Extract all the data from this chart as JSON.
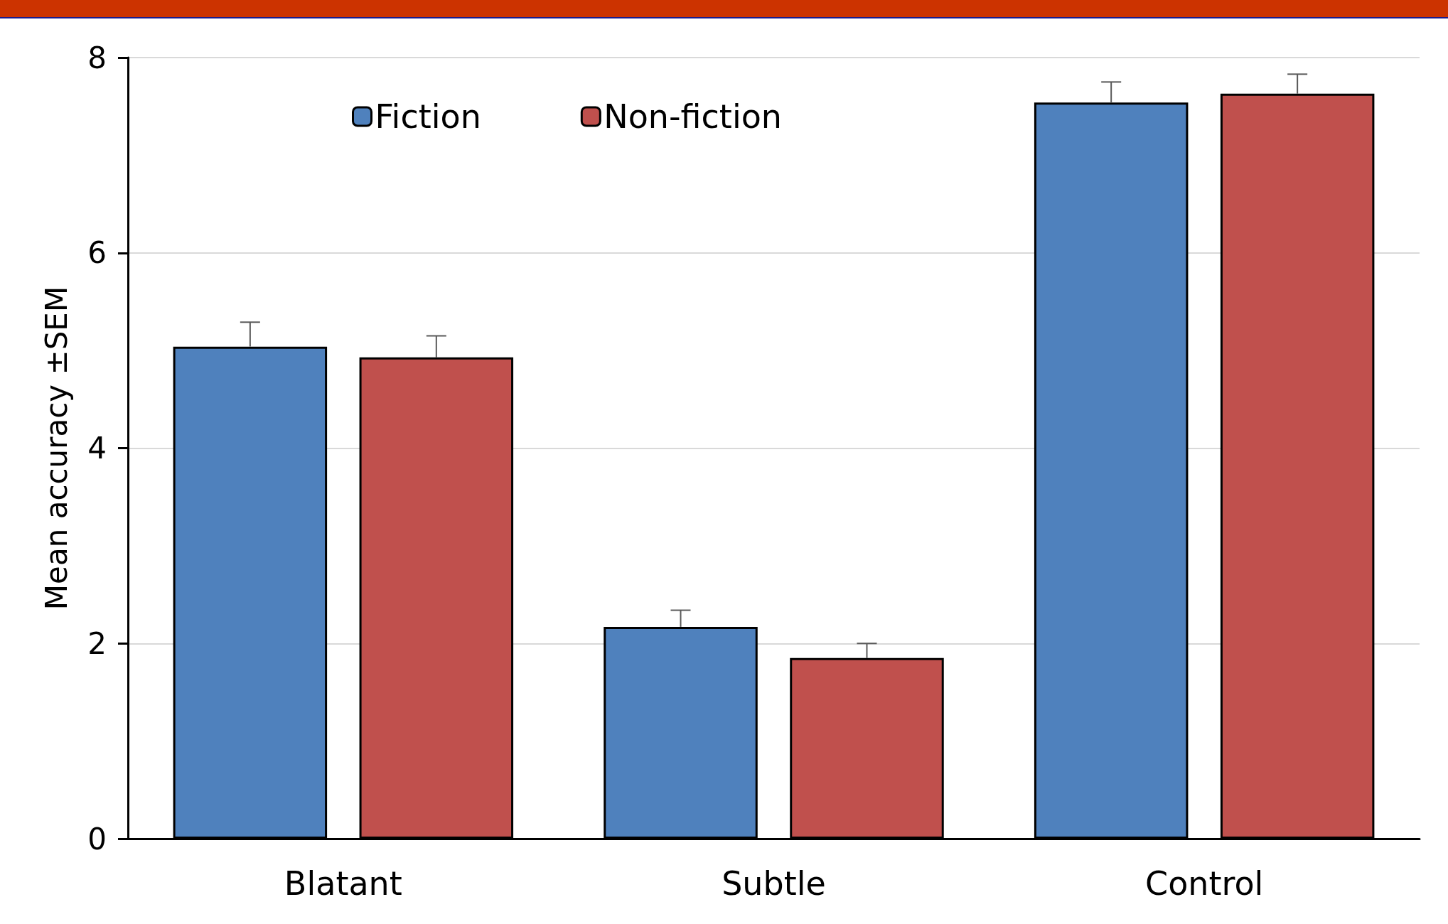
{
  "chart_data": {
    "type": "bar",
    "ylabel": "Mean accuracy ±SEM",
    "categories": [
      "Blatant",
      "Subtle",
      "Control"
    ],
    "series": [
      {
        "name": "Fiction",
        "color": "#4f81bd",
        "values": [
          5.04,
          2.17,
          7.54
        ],
        "errors": [
          [
            5.04,
            5.29
          ],
          [
            2.17,
            2.34
          ],
          [
            7.54,
            7.75
          ]
        ]
      },
      {
        "name": "Non-fiction",
        "color": "#c0504d",
        "values": [
          4.93,
          1.85,
          7.63
        ],
        "errors": [
          [
            4.93,
            5.15
          ],
          [
            1.85,
            2.0
          ],
          [
            7.63,
            7.83
          ]
        ]
      }
    ],
    "ylim": [
      0,
      8
    ],
    "yticks": [
      0,
      2,
      4,
      6,
      8
    ],
    "grid": "y",
    "legend": "top left"
  }
}
